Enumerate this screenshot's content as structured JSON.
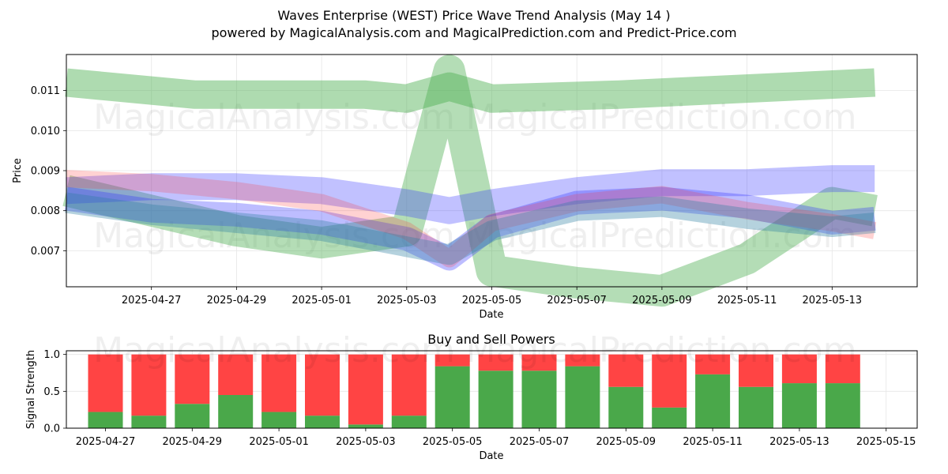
{
  "title": "Waves Enterprise (WEST) Price Wave Trend Analysis (May 14 )",
  "subtitle": "powered by MagicalAnalysis.com and MagicalPrediction.com and Predict-Price.com",
  "watermarks": [
    "MagicalAnalysis.com",
    "MagicalPrediction.com"
  ],
  "chart_data": [
    {
      "type": "area",
      "title": "",
      "xlabel": "Date",
      "ylabel": "Price",
      "x_ticks": [
        "2025-04-27",
        "2025-04-29",
        "2025-05-01",
        "2025-05-03",
        "2025-05-05",
        "2025-05-07",
        "2025-05-09",
        "2025-05-11",
        "2025-05-13"
      ],
      "y_ticks": [
        "0.007",
        "0.008",
        "0.009",
        "0.010",
        "0.011"
      ],
      "xlim": [
        "2025-04-25",
        "2025-05-15"
      ],
      "ylim": [
        0.0061,
        0.0119
      ],
      "grid": true,
      "colors": {
        "green": "#4caf50",
        "blue": "#3333ff",
        "red": "#ff3333",
        "teal": "#2a7fa0"
      },
      "series": [
        {
          "color": "green",
          "x": [
            "2025-04-25",
            "2025-04-28",
            "2025-05-02",
            "2025-05-03",
            "2025-05-04",
            "2025-05-05",
            "2025-05-08",
            "2025-05-10",
            "2025-05-12",
            "2025-05-14"
          ],
          "values": [
            0.0112,
            0.0109,
            0.0109,
            0.0108,
            0.0111,
            0.0108,
            0.0109,
            0.011,
            0.0111,
            0.0112
          ]
        },
        {
          "color": "green",
          "x": [
            "2025-04-25",
            "2025-04-27",
            "2025-04-29",
            "2025-05-01",
            "2025-05-03",
            "2025-05-04",
            "2025-05-05",
            "2025-05-07",
            "2025-05-09",
            "2025-05-11",
            "2025-05-13",
            "2025-05-14"
          ],
          "values": [
            0.0085,
            0.008,
            0.0075,
            0.0072,
            0.0075,
            0.0115,
            0.0065,
            0.0062,
            0.006,
            0.0068,
            0.0082,
            0.008
          ]
        },
        {
          "color": "blue",
          "x": [
            "2025-04-25",
            "2025-04-27",
            "2025-04-29",
            "2025-05-01",
            "2025-05-03",
            "2025-05-04",
            "2025-05-05",
            "2025-05-07",
            "2025-05-09",
            "2025-05-11",
            "2025-05-13",
            "2025-05-14"
          ],
          "values": [
            0.0085,
            0.0086,
            0.0086,
            0.0085,
            0.0082,
            0.008,
            0.0082,
            0.0085,
            0.0087,
            0.0087,
            0.0088,
            0.0088
          ]
        },
        {
          "color": "blue",
          "x": [
            "2025-04-25",
            "2025-04-27",
            "2025-04-29",
            "2025-05-01",
            "2025-05-03",
            "2025-05-04",
            "2025-05-05",
            "2025-05-07",
            "2025-05-09",
            "2025-05-11",
            "2025-05-13",
            "2025-05-14"
          ],
          "values": [
            0.0083,
            0.008,
            0.0079,
            0.0077,
            0.0073,
            0.0068,
            0.0076,
            0.0082,
            0.0083,
            0.0081,
            0.0077,
            0.0078
          ]
        },
        {
          "color": "red",
          "x": [
            "2025-04-25",
            "2025-04-27",
            "2025-04-29",
            "2025-05-01",
            "2025-05-03",
            "2025-05-04",
            "2025-05-05",
            "2025-05-07",
            "2025-05-09",
            "2025-05-11",
            "2025-05-13",
            "2025-05-14"
          ],
          "values": [
            0.0088,
            0.0087,
            0.0085,
            0.0082,
            0.0075,
            0.0068,
            0.0077,
            0.0082,
            0.0084,
            0.008,
            0.0077,
            0.0075
          ]
        },
        {
          "color": "teal",
          "x": [
            "2025-04-25",
            "2025-04-27",
            "2025-04-29",
            "2025-05-01",
            "2025-05-03",
            "2025-05-04",
            "2025-05-05",
            "2025-05-07",
            "2025-05-09",
            "2025-05-11",
            "2025-05-13",
            "2025-05-14"
          ],
          "values": [
            0.0082,
            0.0079,
            0.0077,
            0.0075,
            0.0071,
            0.0069,
            0.0075,
            0.008,
            0.0081,
            0.0078,
            0.0076,
            0.0077
          ]
        }
      ]
    },
    {
      "type": "bar",
      "title": "Buy and Sell Powers",
      "xlabel": "Date",
      "ylabel": "Signal Strength",
      "x_ticks": [
        "2025-04-27",
        "2025-04-29",
        "2025-05-01",
        "2025-05-03",
        "2025-05-05",
        "2025-05-07",
        "2025-05-09",
        "2025-05-11",
        "2025-05-13",
        "2025-05-15"
      ],
      "y_ticks": [
        "0.0",
        "0.5",
        "1.0"
      ],
      "ylim": [
        0,
        1.05
      ],
      "grid": true,
      "colors": {
        "buy": "#4aa84a",
        "sell": "#ff4444"
      },
      "categories": [
        "2025-04-27",
        "2025-04-28",
        "2025-04-29",
        "2025-04-30",
        "2025-05-01",
        "2025-05-02",
        "2025-05-03",
        "2025-05-04",
        "2025-05-05",
        "2025-05-06",
        "2025-05-07",
        "2025-05-08",
        "2025-05-09",
        "2025-05-10",
        "2025-05-11",
        "2025-05-12",
        "2025-05-13",
        "2025-05-14"
      ],
      "series": [
        {
          "values": [
            0.22,
            0.17,
            0.33,
            0.45,
            0.22,
            0.17,
            0.05,
            0.17,
            0.84,
            0.78,
            0.78,
            0.84,
            0.56,
            0.28,
            0.73,
            0.56,
            0.61,
            0.61
          ]
        },
        {
          "values": [
            0.78,
            0.83,
            0.67,
            0.55,
            0.78,
            0.83,
            0.95,
            0.83,
            0.16,
            0.22,
            0.22,
            0.16,
            0.44,
            0.72,
            0.27,
            0.44,
            0.39,
            0.39
          ]
        }
      ]
    }
  ]
}
